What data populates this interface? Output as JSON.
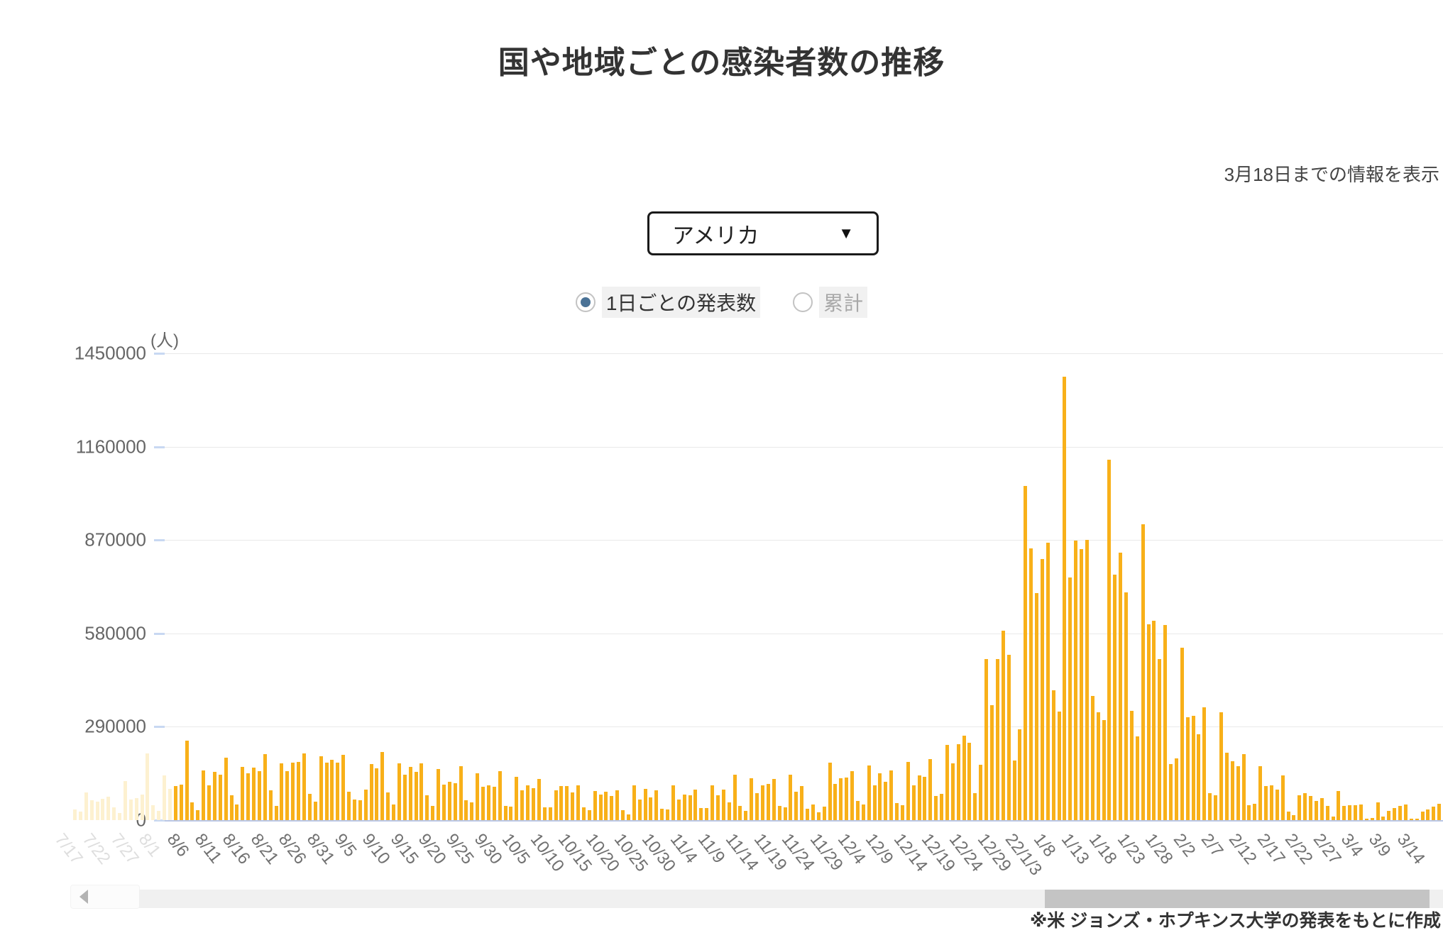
{
  "page": {
    "title": "国や地域ごとの感染者数の推移",
    "info_note": "3月18日までの情報を表示",
    "source_note": "※米 ジョンズ・ホプキンス大学の発表をもとに作成"
  },
  "controls": {
    "country_select": {
      "value": "アメリカ",
      "caret": "▼"
    },
    "radios": [
      {
        "label": "1日ごとの発表数",
        "selected": true
      },
      {
        "label": "累計",
        "selected": false
      }
    ]
  },
  "chart_data": {
    "type": "bar",
    "title": "国や地域ごとの感染者数の推移 (アメリカ・1日ごとの発表数)",
    "unit_label": "(人)",
    "ylabel": "人",
    "ylim": [
      0,
      1450000
    ],
    "y_ticks": [
      0,
      290000,
      580000,
      870000,
      1160000,
      1450000
    ],
    "grid": true,
    "bar_color": "#f8b019",
    "bar_faded_color": "#fdf1d0",
    "faded_until_index": 18,
    "x_label_every": 5,
    "x_labels": [
      {
        "text": "7/17",
        "faded": true
      },
      {
        "text": "7/22",
        "faded": true
      },
      {
        "text": "7/27",
        "faded": true
      },
      {
        "text": "8/1",
        "faded": true
      },
      {
        "text": "8/6",
        "faded": false
      },
      {
        "text": "8/11",
        "faded": false
      },
      {
        "text": "8/16",
        "faded": false
      },
      {
        "text": "8/21",
        "faded": false
      },
      {
        "text": "8/26",
        "faded": false
      },
      {
        "text": "8/31",
        "faded": false
      },
      {
        "text": "9/5",
        "faded": false
      },
      {
        "text": "9/10",
        "faded": false
      },
      {
        "text": "9/15",
        "faded": false
      },
      {
        "text": "9/20",
        "faded": false
      },
      {
        "text": "9/25",
        "faded": false
      },
      {
        "text": "9/30",
        "faded": false
      },
      {
        "text": "10/5",
        "faded": false
      },
      {
        "text": "10/10",
        "faded": false
      },
      {
        "text": "10/15",
        "faded": false
      },
      {
        "text": "10/20",
        "faded": false
      },
      {
        "text": "10/25",
        "faded": false
      },
      {
        "text": "10/30",
        "faded": false
      },
      {
        "text": "11/4",
        "faded": false
      },
      {
        "text": "11/9",
        "faded": false
      },
      {
        "text": "11/14",
        "faded": false
      },
      {
        "text": "11/19",
        "faded": false
      },
      {
        "text": "11/24",
        "faded": false
      },
      {
        "text": "11/29",
        "faded": false
      },
      {
        "text": "12/4",
        "faded": false
      },
      {
        "text": "12/9",
        "faded": false
      },
      {
        "text": "12/14",
        "faded": false
      },
      {
        "text": "12/19",
        "faded": false
      },
      {
        "text": "12/24",
        "faded": false
      },
      {
        "text": "12/29",
        "faded": false
      },
      {
        "text": "22/1/3",
        "faded": false
      },
      {
        "text": "1/8",
        "faded": false
      },
      {
        "text": "1/13",
        "faded": false
      },
      {
        "text": "1/18",
        "faded": false
      },
      {
        "text": "1/23",
        "faded": false
      },
      {
        "text": "1/28",
        "faded": false
      },
      {
        "text": "2/2",
        "faded": false
      },
      {
        "text": "2/7",
        "faded": false
      },
      {
        "text": "2/12",
        "faded": false
      },
      {
        "text": "2/17",
        "faded": false
      },
      {
        "text": "2/22",
        "faded": false
      },
      {
        "text": "2/27",
        "faded": false
      },
      {
        "text": "3/4",
        "faded": false
      },
      {
        "text": "3/9",
        "faded": false
      },
      {
        "text": "3/14",
        "faded": false
      }
    ],
    "date_range": {
      "start": "7/17",
      "end": "3/18"
    },
    "values": [
      33000,
      26000,
      86000,
      62000,
      58000,
      66000,
      73000,
      39000,
      22000,
      121000,
      64000,
      68000,
      80000,
      207000,
      46000,
      29000,
      139000,
      96000,
      105000,
      110000,
      246000,
      55000,
      30000,
      155000,
      108000,
      150000,
      142000,
      195000,
      77000,
      48000,
      165000,
      145000,
      162000,
      152000,
      205000,
      92000,
      45000,
      177000,
      152000,
      178000,
      181000,
      208000,
      81000,
      57000,
      198000,
      179000,
      188000,
      179000,
      203000,
      88000,
      64000,
      62000,
      94000,
      174000,
      160000,
      211000,
      87000,
      48000,
      176000,
      142000,
      165000,
      150000,
      177000,
      78000,
      45000,
      158000,
      110000,
      119000,
      114000,
      167000,
      62000,
      55000,
      146000,
      103000,
      108000,
      104000,
      151000,
      45000,
      42000,
      135000,
      93000,
      107000,
      99000,
      128000,
      40000,
      40000,
      93000,
      106000,
      106000,
      85000,
      107000,
      40000,
      30000,
      91000,
      79000,
      88000,
      74000,
      92000,
      30000,
      18000,
      107000,
      63000,
      96000,
      70000,
      92000,
      35000,
      32000,
      109000,
      64000,
      80000,
      77000,
      94000,
      38000,
      38000,
      107000,
      77000,
      94000,
      54000,
      141000,
      43000,
      29000,
      129000,
      83000,
      109000,
      112000,
      127000,
      43000,
      40000,
      140000,
      88000,
      106000,
      35000,
      49000,
      25000,
      42000,
      179000,
      113000,
      131000,
      133000,
      152000,
      59000,
      49000,
      170000,
      108000,
      145000,
      118000,
      154000,
      52000,
      47000,
      180000,
      109000,
      139000,
      135000,
      189000,
      74000,
      81000,
      233000,
      176000,
      236000,
      262000,
      241000,
      84000,
      171000,
      500000,
      357000,
      501000,
      589000,
      513000,
      185000,
      282000,
      1038000,
      845000,
      705000,
      810000,
      861000,
      403000,
      337000,
      1377000,
      753000,
      869000,
      841000,
      871000,
      385000,
      335000,
      310000,
      1119000,
      762000,
      830000,
      708000,
      339000,
      261000,
      920000,
      608000,
      619000,
      500000,
      606000,
      173000,
      192000,
      536000,
      320000,
      324000,
      267000,
      351000,
      83000,
      78000,
      336000,
      209000,
      184000,
      167000,
      206000,
      46000,
      51000,
      167000,
      105000,
      109000,
      94000,
      138000,
      26000,
      15000,
      77000,
      83000,
      76000,
      59000,
      68000,
      43000,
      11000,
      90000,
      44000,
      46000,
      46000,
      48000,
      4000,
      7000,
      55000,
      12000,
      29000,
      37000,
      45000,
      48000,
      2000,
      4000,
      26000,
      32000,
      41000,
      50000
    ]
  },
  "scrollbar": {
    "thumb_start_pct": 71,
    "thumb_width_pct": 28
  }
}
